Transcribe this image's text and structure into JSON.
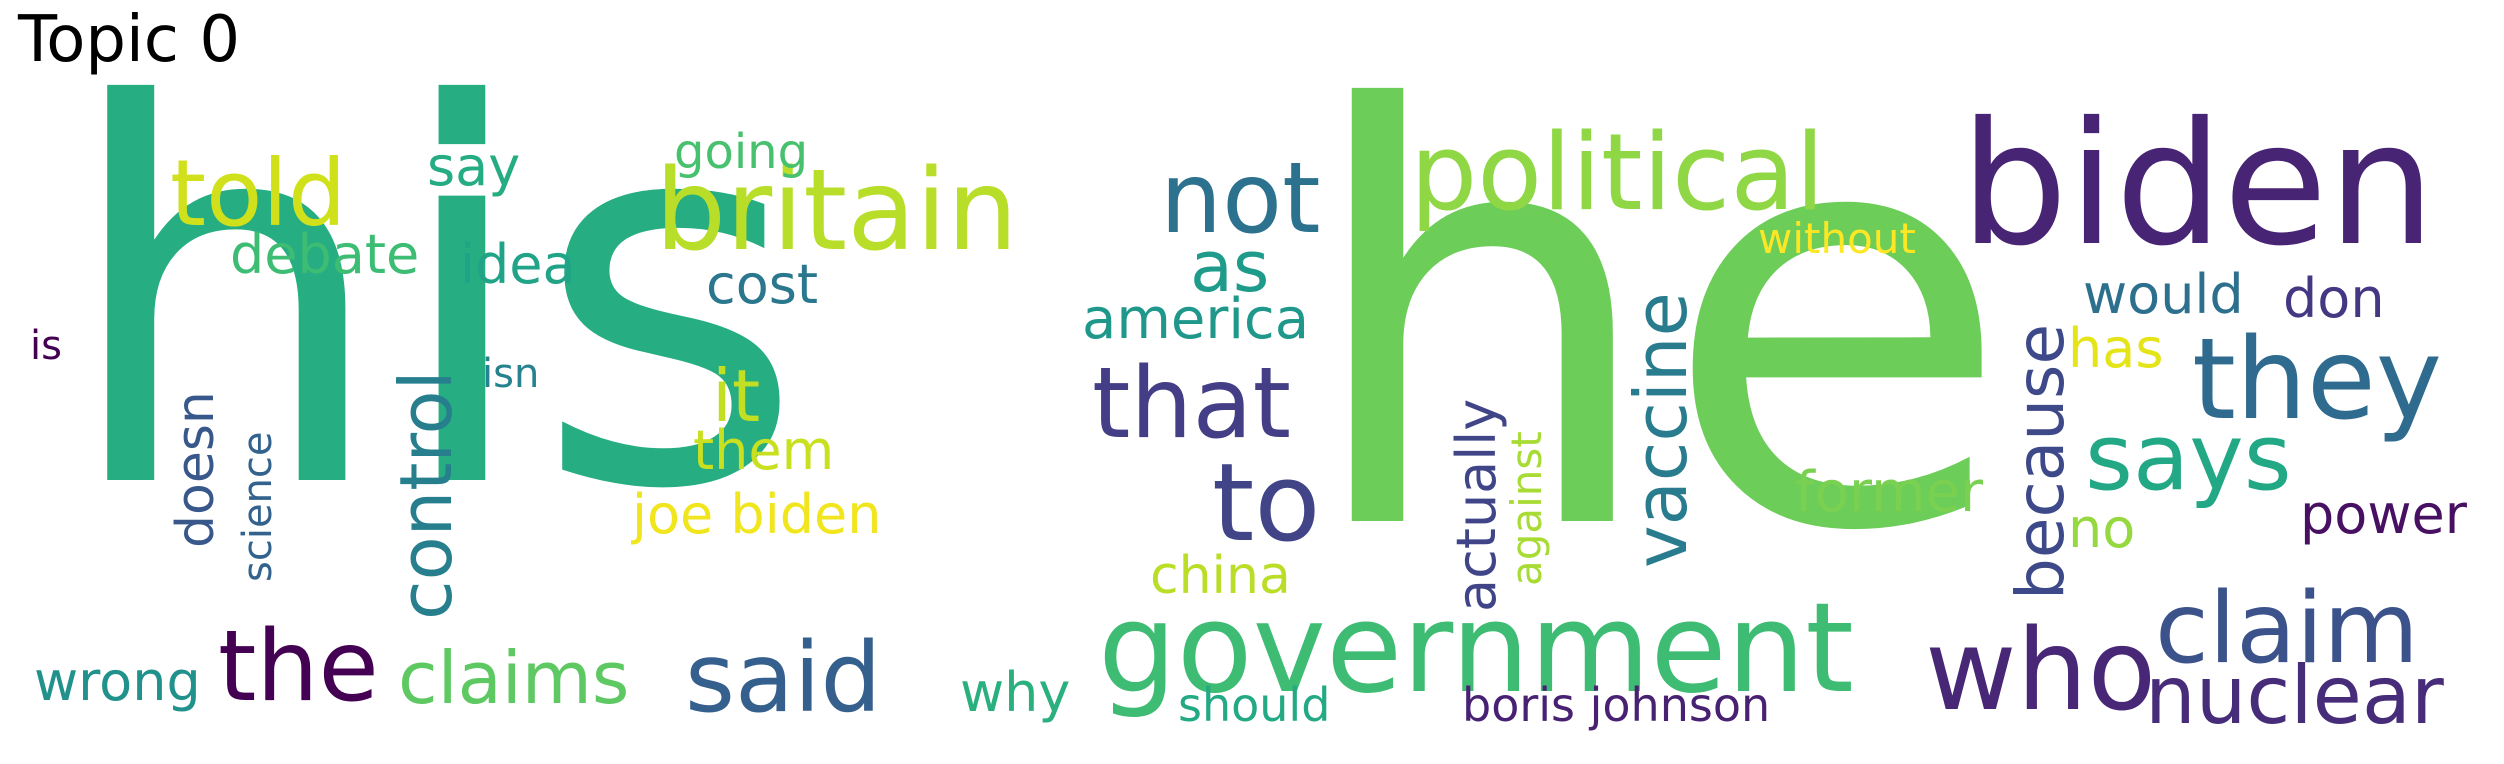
{
  "title": "Topic 0",
  "words": [
    {
      "text": "his",
      "color": "#26ad81"
    },
    {
      "text": "he",
      "color": "#6ccd59"
    },
    {
      "text": "biden",
      "color": "#482475"
    },
    {
      "text": "political",
      "color": "#8fd744"
    },
    {
      "text": "britain",
      "color": "#b8de29"
    },
    {
      "text": "told",
      "color": "#d0e11c"
    },
    {
      "text": "not",
      "color": "#2c718e"
    },
    {
      "text": "government",
      "color": "#3fbc73"
    },
    {
      "text": "they",
      "color": "#2f6b8e"
    },
    {
      "text": "that",
      "color": "#433e85"
    },
    {
      "text": "to",
      "color": "#414487"
    },
    {
      "text": "who",
      "color": "#482777"
    },
    {
      "text": "claim",
      "color": "#3b528b"
    },
    {
      "text": "said",
      "color": "#355f8d"
    },
    {
      "text": "the",
      "color": "#440154"
    },
    {
      "text": "nuclear",
      "color": "#472c7a"
    },
    {
      "text": "says",
      "color": "#22a884"
    },
    {
      "text": "claims",
      "color": "#5ec962"
    },
    {
      "text": "control",
      "color": "#277f8e"
    },
    {
      "text": "vaccine",
      "color": "#287c8e"
    },
    {
      "text": "because",
      "color": "#3e4989"
    },
    {
      "text": "as",
      "color": "#1e9b8a"
    },
    {
      "text": "it",
      "color": "#c2df23"
    },
    {
      "text": "america",
      "color": "#1f988b"
    },
    {
      "text": "debate",
      "color": "#3dbc74"
    },
    {
      "text": "idea",
      "color": "#20a386"
    },
    {
      "text": "cost",
      "color": "#2a778e"
    },
    {
      "text": "say",
      "color": "#25ac82"
    },
    {
      "text": "going",
      "color": "#48c16e"
    },
    {
      "text": "former",
      "color": "#7ad151"
    },
    {
      "text": "would",
      "color": "#2d708e"
    },
    {
      "text": "don",
      "color": "#453781"
    },
    {
      "text": "has",
      "color": "#e5e419"
    },
    {
      "text": "power",
      "color": "#471063"
    },
    {
      "text": "no",
      "color": "#95d840"
    },
    {
      "text": "joe biden",
      "color": "#f1e51d"
    },
    {
      "text": "them",
      "color": "#c8e020"
    },
    {
      "text": "china",
      "color": "#bade28"
    },
    {
      "text": "why",
      "color": "#2ab07f"
    },
    {
      "text": "should",
      "color": "#23a983"
    },
    {
      "text": "wrong",
      "color": "#21918c"
    },
    {
      "text": "boris johnson",
      "color": "#482173"
    },
    {
      "text": "actually",
      "color": "#404588"
    },
    {
      "text": "against",
      "color": "#a8db34"
    },
    {
      "text": "without",
      "color": "#fde725"
    },
    {
      "text": "doesn",
      "color": "#38588c"
    },
    {
      "text": "science",
      "color": "#33638d"
    },
    {
      "text": "isn",
      "color": "#26828e"
    },
    {
      "text": "is",
      "color": "#440154"
    }
  ]
}
